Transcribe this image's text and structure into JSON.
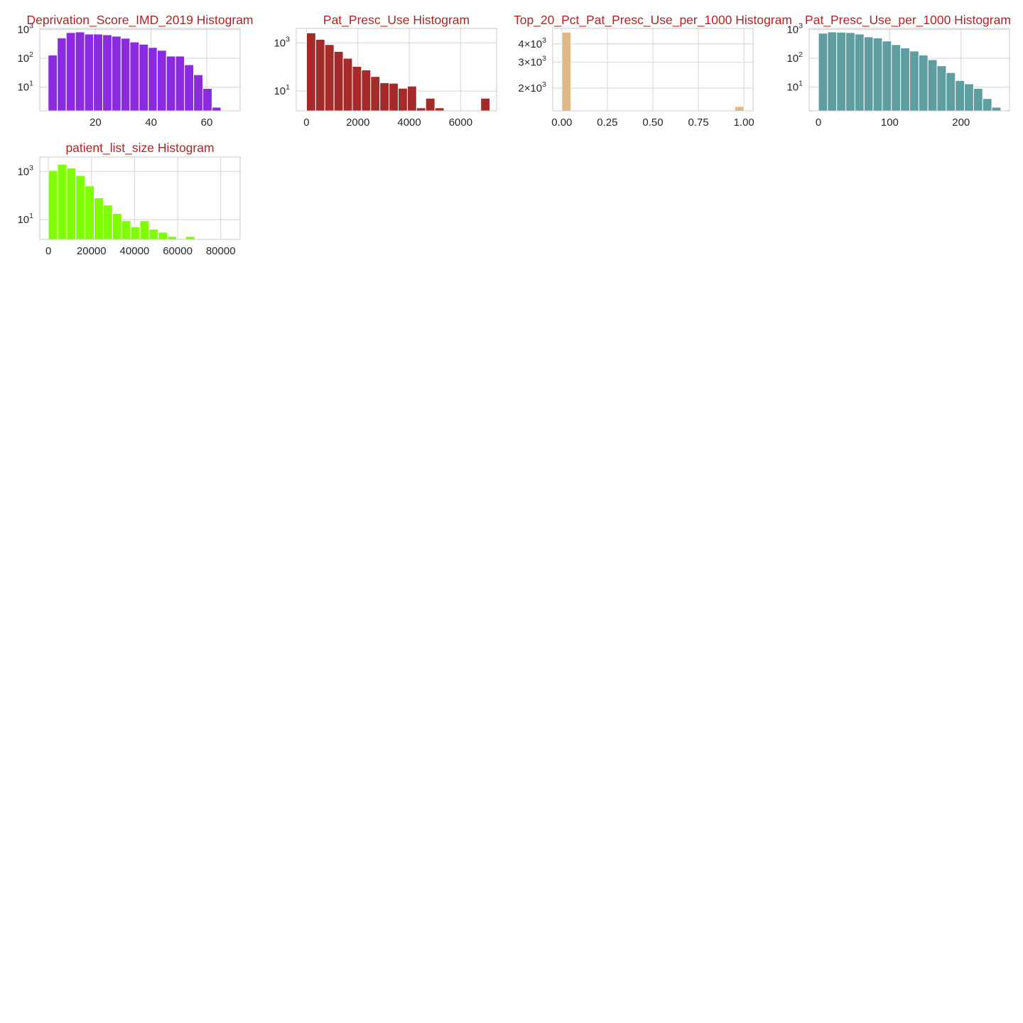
{
  "chart_data": [
    {
      "type": "bar",
      "title": "Deprivation_Score_IMD_2019 Histogram",
      "color": "#8a2be2",
      "y_scale": "log",
      "xlim": [
        0,
        72
      ],
      "ylim": [
        1.5,
        1100
      ],
      "x_ticks": [
        {
          "value": 20,
          "label": "20"
        },
        {
          "value": 40,
          "label": "40"
        },
        {
          "value": 60,
          "label": "60"
        }
      ],
      "y_ticks": [
        {
          "value": 10,
          "base": "10",
          "exp": "1"
        },
        {
          "value": 100,
          "base": "10",
          "exp": "2"
        },
        {
          "value": 1000,
          "base": "10",
          "exp": "3"
        }
      ],
      "bin_edges": [
        3.0,
        6.3,
        9.5,
        12.8,
        16.1,
        19.3,
        22.6,
        25.9,
        29.2,
        32.4,
        35.7,
        39.0,
        42.2,
        45.5,
        48.8,
        52.0,
        55.3,
        58.6,
        61.9,
        65.1,
        68.4
      ],
      "values": [
        130,
        510,
        790,
        830,
        700,
        700,
        660,
        590,
        500,
        370,
        310,
        240,
        190,
        120,
        120,
        60,
        27,
        9,
        2,
        0
      ]
    },
    {
      "type": "bar",
      "title": "Pat_Presc_Use Histogram",
      "color": "#a52a2a",
      "y_scale": "log",
      "xlim": [
        -400,
        7400
      ],
      "ylim": [
        1.5,
        4000
      ],
      "x_ticks": [
        {
          "value": 0,
          "label": "0"
        },
        {
          "value": 2000,
          "label": "2000"
        },
        {
          "value": 4000,
          "label": "4000"
        },
        {
          "value": 6000,
          "label": "6000"
        }
      ],
      "y_ticks": [
        {
          "value": 10,
          "base": "10",
          "exp": "1"
        },
        {
          "value": 1000,
          "base": "10",
          "exp": "3"
        }
      ],
      "bin_edges": [
        0,
        357,
        714,
        1071,
        1428,
        1785,
        2142,
        2499,
        2856,
        3213,
        3570,
        3927,
        4284,
        4641,
        4998,
        5355,
        5712,
        6069,
        6426,
        6783,
        7140
      ],
      "values": [
        2600,
        1400,
        850,
        440,
        230,
        105,
        75,
        40,
        22,
        21,
        13,
        16,
        2,
        5,
        2,
        0,
        0,
        0,
        0,
        5
      ]
    },
    {
      "type": "bar",
      "title": "Top_20_Pct_Pat_Presc_Use_per_1000 Histogram",
      "color": "#deb887",
      "y_scale": "log",
      "xlim": [
        -0.05,
        1.05
      ],
      "ylim": [
        1400,
        5100
      ],
      "x_ticks": [
        {
          "value": 0,
          "label": "0.00"
        },
        {
          "value": 0.25,
          "label": "0.25"
        },
        {
          "value": 0.5,
          "label": "0.50"
        },
        {
          "value": 0.75,
          "label": "0.75"
        },
        {
          "value": 1,
          "label": "1.00"
        }
      ],
      "y_ticks": [
        {
          "value": 2000,
          "base": "2×10",
          "exp": "3"
        },
        {
          "value": 3000,
          "base": "3×10",
          "exp": "3"
        },
        {
          "value": 4000,
          "base": "4×10",
          "exp": "3"
        }
      ],
      "bin_edges": [
        0,
        0.05,
        0.1,
        0.15,
        0.2,
        0.25,
        0.3,
        0.35,
        0.4,
        0.45,
        0.5,
        0.55,
        0.6,
        0.65,
        0.7,
        0.75,
        0.8,
        0.85,
        0.9,
        0.95,
        1.0
      ],
      "values": [
        4800,
        0,
        0,
        0,
        0,
        0,
        0,
        0,
        0,
        0,
        0,
        0,
        0,
        0,
        0,
        0,
        0,
        0,
        0,
        1500
      ]
    },
    {
      "type": "bar",
      "title": "Pat_Presc_Use_per_1000 Histogram",
      "color": "#5f9ea0",
      "y_scale": "log",
      "xlim": [
        -13,
        268
      ],
      "ylim": [
        1.5,
        1100
      ],
      "x_ticks": [
        {
          "value": 0,
          "label": "0"
        },
        {
          "value": 100,
          "label": "100"
        },
        {
          "value": 200,
          "label": "200"
        }
      ],
      "y_ticks": [
        {
          "value": 10,
          "base": "10",
          "exp": "1"
        },
        {
          "value": 100,
          "base": "10",
          "exp": "2"
        },
        {
          "value": 1000,
          "base": "10",
          "exp": "3"
        }
      ],
      "bin_edges": [
        0,
        12.8,
        25.6,
        38.4,
        51.2,
        64.0,
        76.8,
        89.6,
        102.4,
        115.2,
        128.0,
        140.8,
        153.6,
        166.4,
        179.2,
        192.0,
        204.8,
        217.6,
        230.4,
        243.2,
        256.0
      ],
      "values": [
        750,
        830,
        810,
        790,
        700,
        560,
        510,
        400,
        300,
        230,
        180,
        130,
        90,
        55,
        32,
        17,
        13,
        9,
        4,
        2
      ]
    },
    {
      "type": "bar",
      "title": "patient_list_size Histogram",
      "color": "#7fff00",
      "y_scale": "log",
      "xlim": [
        -4000,
        89000
      ],
      "ylim": [
        1.5,
        4000
      ],
      "x_ticks": [
        {
          "value": 0,
          "label": "0"
        },
        {
          "value": 20000,
          "label": "20000"
        },
        {
          "value": 40000,
          "label": "40000"
        },
        {
          "value": 60000,
          "label": "60000"
        },
        {
          "value": 80000,
          "label": "80000"
        }
      ],
      "y_ticks": [
        {
          "value": 10,
          "base": "10",
          "exp": "1"
        },
        {
          "value": 1000,
          "base": "10",
          "exp": "3"
        }
      ],
      "bin_edges": [
        0,
        4250,
        8500,
        12750,
        17000,
        21250,
        25500,
        29750,
        34000,
        38250,
        42500,
        46750,
        51000,
        55250,
        59500,
        63750,
        68000,
        72250,
        76500,
        80750,
        85000
      ],
      "values": [
        1100,
        2000,
        1400,
        680,
        250,
        80,
        40,
        18,
        9,
        5,
        9,
        4,
        3,
        2,
        0,
        2,
        1,
        0,
        1,
        1
      ]
    }
  ]
}
